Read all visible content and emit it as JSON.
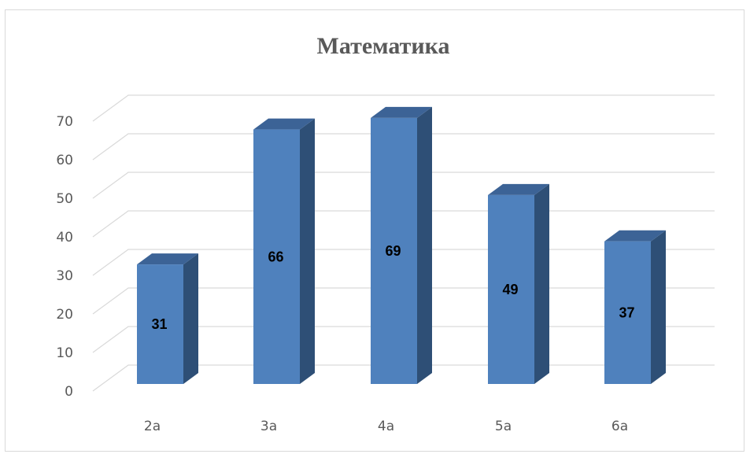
{
  "chart_data": {
    "type": "bar",
    "title": "Математика",
    "categories": [
      "2а",
      "3а",
      "4а",
      "5а",
      "6а"
    ],
    "values": [
      31,
      66,
      69,
      49,
      37
    ],
    "ylim": [
      0,
      70
    ],
    "yticks": [
      0,
      10,
      20,
      30,
      40,
      50,
      60,
      70
    ],
    "xlabel": "",
    "ylabel": "",
    "grid": true,
    "legend": "none",
    "data_labels": true,
    "style": "3d-column"
  },
  "colors": {
    "bar_front": "#4f81bd",
    "bar_top": "#3c6396",
    "bar_side": "#2e4f76",
    "grid": "#d9d9d9",
    "text": "#595959"
  }
}
